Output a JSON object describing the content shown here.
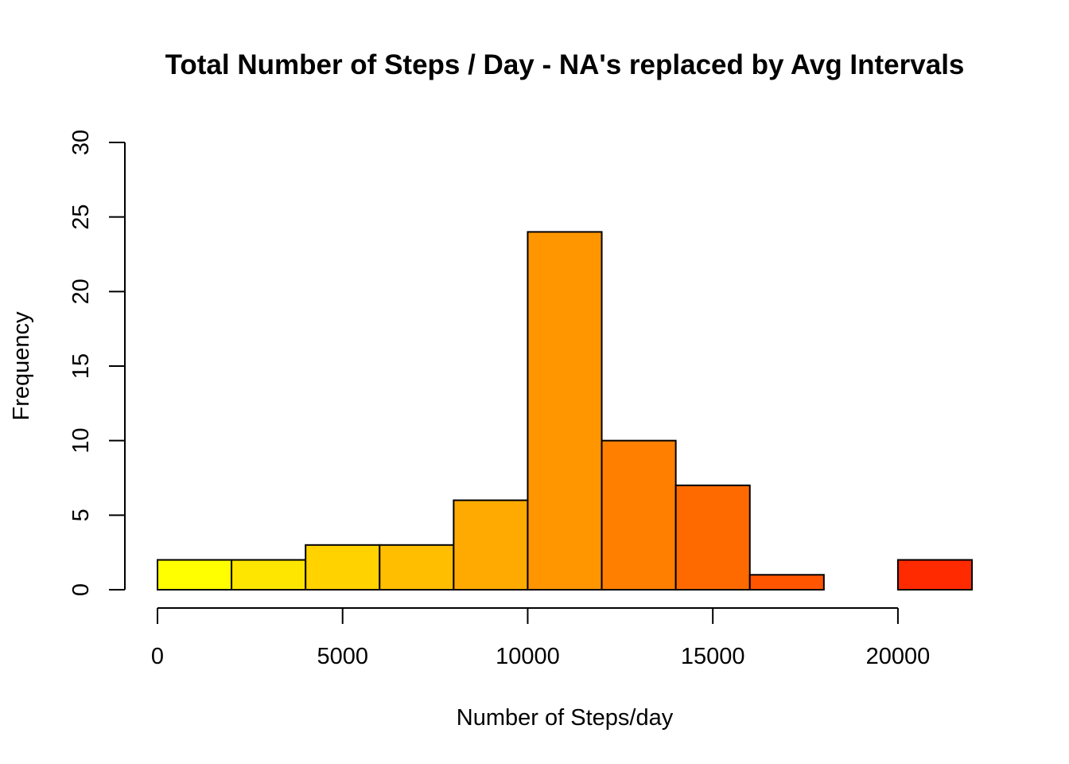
{
  "chart_data": {
    "type": "bar",
    "title": "Total Number of Steps / Day - NA's replaced by Avg Intervals",
    "xlabel": "Number of Steps/day",
    "ylabel": "Frequency",
    "bins": [
      {
        "from": 0,
        "to": 2000,
        "count": 2,
        "color": "#FFFF00"
      },
      {
        "from": 2000,
        "to": 4000,
        "count": 2,
        "color": "#FFE600"
      },
      {
        "from": 4000,
        "to": 6000,
        "count": 3,
        "color": "#FFD200"
      },
      {
        "from": 6000,
        "to": 8000,
        "count": 3,
        "color": "#FFBE00"
      },
      {
        "from": 8000,
        "to": 10000,
        "count": 6,
        "color": "#FFAA00"
      },
      {
        "from": 10000,
        "to": 12000,
        "count": 24,
        "color": "#FF9600"
      },
      {
        "from": 12000,
        "to": 14000,
        "count": 10,
        "color": "#FF8000"
      },
      {
        "from": 14000,
        "to": 16000,
        "count": 7,
        "color": "#FF6A00"
      },
      {
        "from": 16000,
        "to": 18000,
        "count": 1,
        "color": "#FF5500"
      },
      {
        "from": 18000,
        "to": 20000,
        "count": 0,
        "color": "#FF4000"
      },
      {
        "from": 20000,
        "to": 22000,
        "count": 2,
        "color": "#FF2A00"
      }
    ],
    "xlim": [
      0,
      22000
    ],
    "ylim": [
      0,
      30
    ],
    "xticks": [
      0,
      5000,
      10000,
      15000,
      20000
    ],
    "yticks": [
      0,
      5,
      10,
      15,
      20,
      25,
      30
    ],
    "grid": false,
    "legend": "none"
  }
}
